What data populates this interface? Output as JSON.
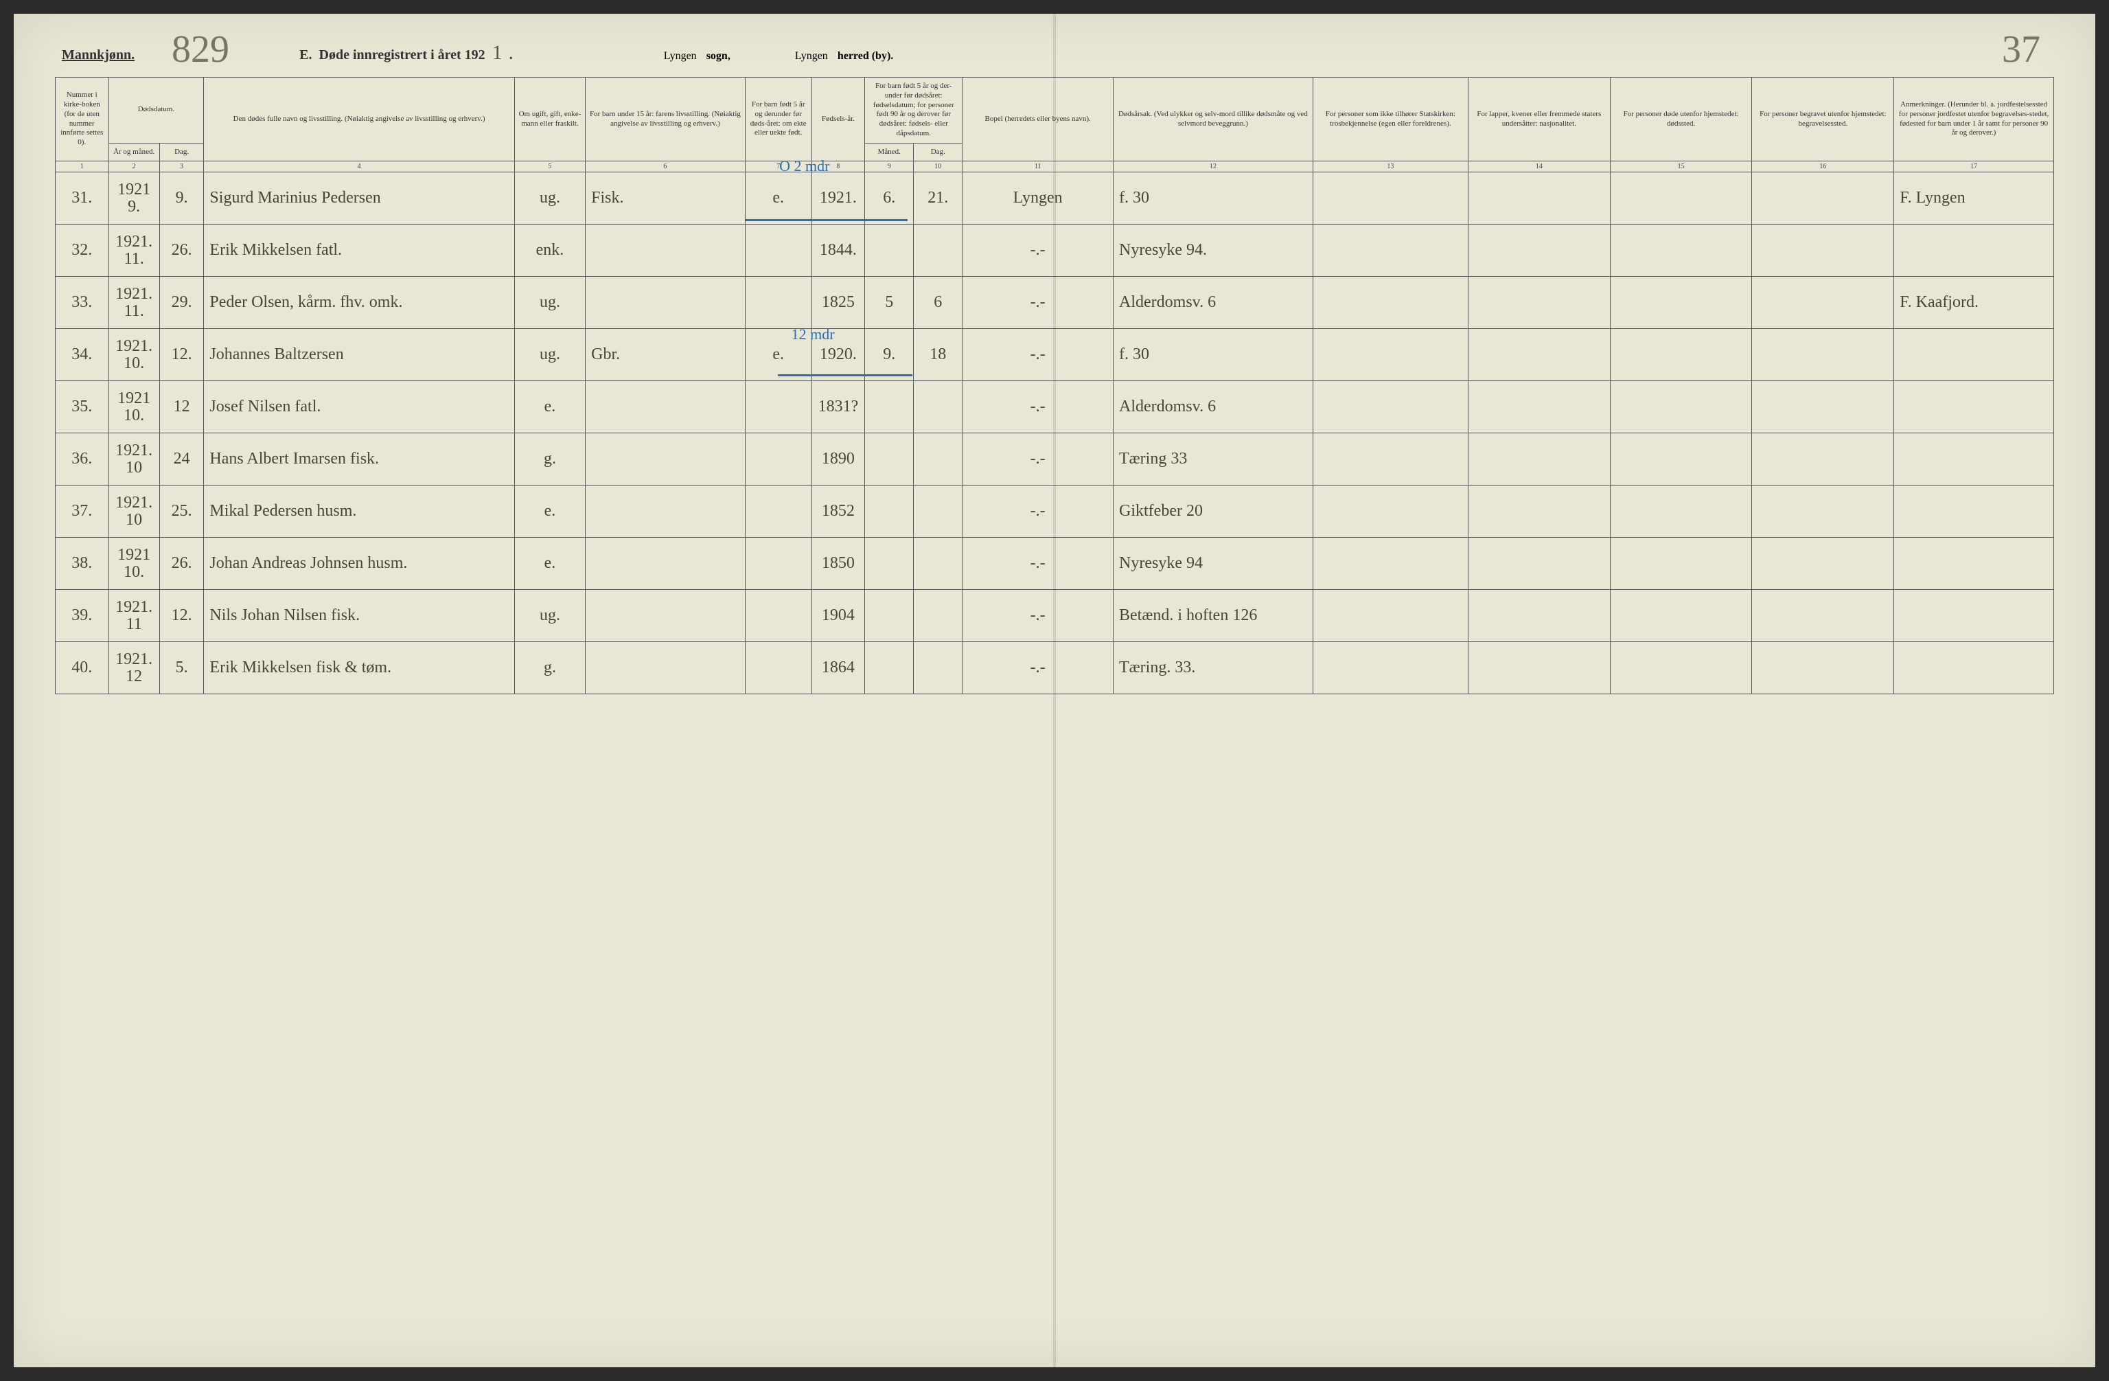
{
  "header": {
    "gender_label": "Mannkjønn.",
    "handwritten_top_number": "829",
    "title_prefix": "E.",
    "title_main": "Døde innregistrert i året 192",
    "year_digit": "1",
    "sogn_hw": "Lyngen",
    "sogn_label": "sogn,",
    "herred_hw": "Lyngen",
    "herred_label": "herred (by).",
    "page_number_hw": "37"
  },
  "columns": {
    "c1": "Nummer i kirke-boken (for de uten nummer innførte settes 0).",
    "c2a": "Dødsdatum.",
    "c2b": "År og måned.",
    "c3": "Dag.",
    "c4": "Den dødes fulle navn og livsstilling.\n(Nøiaktig angivelse av livsstilling og erhverv.)",
    "c5": "Om ugift, gift, enke-mann eller fraskilt.",
    "c6": "For barn under 15 år: farens livsstilling.\n(Nøiaktig angivelse av livsstilling og erhverv.)",
    "c7": "For barn født 5 år og derunder før døds-året: om ekte eller uekte født.",
    "c8": "Fødsels-år.",
    "c9a": "For barn født 5 år og der-under før dødsåret: fødselsdatum; for personer født 90 år og derover før dødsåret: fødsels- eller dåpsdatum.",
    "c9b": "Måned.",
    "c10": "Dag.",
    "c11": "Bopel (herredets eller byens navn).",
    "c12": "Dødsårsak.\n(Ved ulykker og selv-mord tillike dødsmåte og ved selvmord beveggrunn.)",
    "c13": "For personer som ikke tilhører Statskirken: trosbekjennelse (egen eller foreldrenes).",
    "c14": "For lapper, kvener eller fremmede staters undersåtter: nasjonalitet.",
    "c15": "For personer døde utenfor hjemstedet: dødssted.",
    "c16": "For personer begravet utenfor hjemstedet: begravelsessted.",
    "c17": "Anmerkninger.\n(Herunder bl. a. jordfestelsessted for personer jordfestet utenfor begravelses-stedet, fødested for barn under 1 år samt for personer 90 år og derover.)"
  },
  "colnums": [
    "1",
    "2",
    "3",
    "4",
    "5",
    "6",
    "7",
    "8",
    "9",
    "10",
    "11",
    "12",
    "13",
    "14",
    "15",
    "16",
    "17"
  ],
  "blue_annotations": {
    "top": "O 2 mdr",
    "mid": "12 mdr"
  },
  "rows": [
    {
      "num": "31.",
      "ym": "1921\n9.",
      "day": "9.",
      "name": "Sigurd Marinius Pedersen",
      "status": "ug.",
      "father": "Fisk.",
      "ekte": "e.",
      "faar": "1921.",
      "mnd": "6.",
      "dag": "21.",
      "bopel": "Lyngen",
      "cause": "f. 30",
      "c17": "F. Lyngen"
    },
    {
      "num": "32.",
      "ym": "1921.\n11.",
      "day": "26.",
      "name": "Erik Mikkelsen fatl.",
      "status": "enk.",
      "father": "",
      "ekte": "",
      "faar": "1844.",
      "mnd": "",
      "dag": "",
      "bopel": "-.-",
      "cause": "Nyresyke 94.",
      "c17": ""
    },
    {
      "num": "33.",
      "ym": "1921.\n11.",
      "day": "29.",
      "name": "Peder Olsen, kårm. fhv. omk.",
      "status": "ug.",
      "father": "",
      "ekte": "",
      "faar": "1825",
      "mnd": "5",
      "dag": "6",
      "bopel": "-.-",
      "cause": "Alderdomsv. 6",
      "c17": "F. Kaafjord."
    },
    {
      "num": "34.",
      "ym": "1921.\n10.",
      "day": "12.",
      "name": "Johannes Baltzersen",
      "status": "ug.",
      "father": "Gbr.",
      "ekte": "e.",
      "faar": "1920.",
      "mnd": "9.",
      "dag": "18",
      "bopel": "-.-",
      "cause": "f. 30",
      "c17": ""
    },
    {
      "num": "35.",
      "ym": "1921\n10.",
      "day": "12",
      "name": "Josef Nilsen fatl.",
      "status": "e.",
      "father": "",
      "ekte": "",
      "faar": "1831?",
      "mnd": "",
      "dag": "",
      "bopel": "-.-",
      "cause": "Alderdomsv. 6",
      "c17": ""
    },
    {
      "num": "36.",
      "ym": "1921.\n10",
      "day": "24",
      "name": "Hans Albert Imarsen fisk.",
      "status": "g.",
      "father": "",
      "ekte": "",
      "faar": "1890",
      "mnd": "",
      "dag": "",
      "bopel": "-.-",
      "cause": "Tæring 33",
      "c17": ""
    },
    {
      "num": "37.",
      "ym": "1921.\n10",
      "day": "25.",
      "name": "Mikal Pedersen husm.",
      "status": "e.",
      "father": "",
      "ekte": "",
      "faar": "1852",
      "mnd": "",
      "dag": "",
      "bopel": "-.-",
      "cause": "Giktfeber 20",
      "c17": ""
    },
    {
      "num": "38.",
      "ym": "1921\n10.",
      "day": "26.",
      "name": "Johan Andreas Johnsen husm.",
      "status": "e.",
      "father": "",
      "ekte": "",
      "faar": "1850",
      "mnd": "",
      "dag": "",
      "bopel": "-.-",
      "cause": "Nyresyke 94",
      "c17": ""
    },
    {
      "num": "39.",
      "ym": "1921.\n11",
      "day": "12.",
      "name": "Nils Johan Nilsen fisk.",
      "status": "ug.",
      "father": "",
      "ekte": "",
      "faar": "1904",
      "mnd": "",
      "dag": "",
      "bopel": "-.-",
      "cause": "Betænd. i hoften 126",
      "c17": ""
    },
    {
      "num": "40.",
      "ym": "1921.\n12",
      "day": "5.",
      "name": "Erik Mikkelsen fisk & tøm.",
      "status": "g.",
      "father": "",
      "ekte": "",
      "faar": "1864",
      "mnd": "",
      "dag": "",
      "bopel": "-.-",
      "cause": "Tæring. 33.",
      "c17": ""
    }
  ],
  "styling": {
    "paper_bg": "#e8e6d4",
    "border_color": "#555555",
    "hw_color": "#4a4632",
    "blue_color": "#2b6fb3",
    "print_color": "#333333",
    "header_fontsize_pt": 11,
    "body_hw_fontsize_pt": 24
  }
}
